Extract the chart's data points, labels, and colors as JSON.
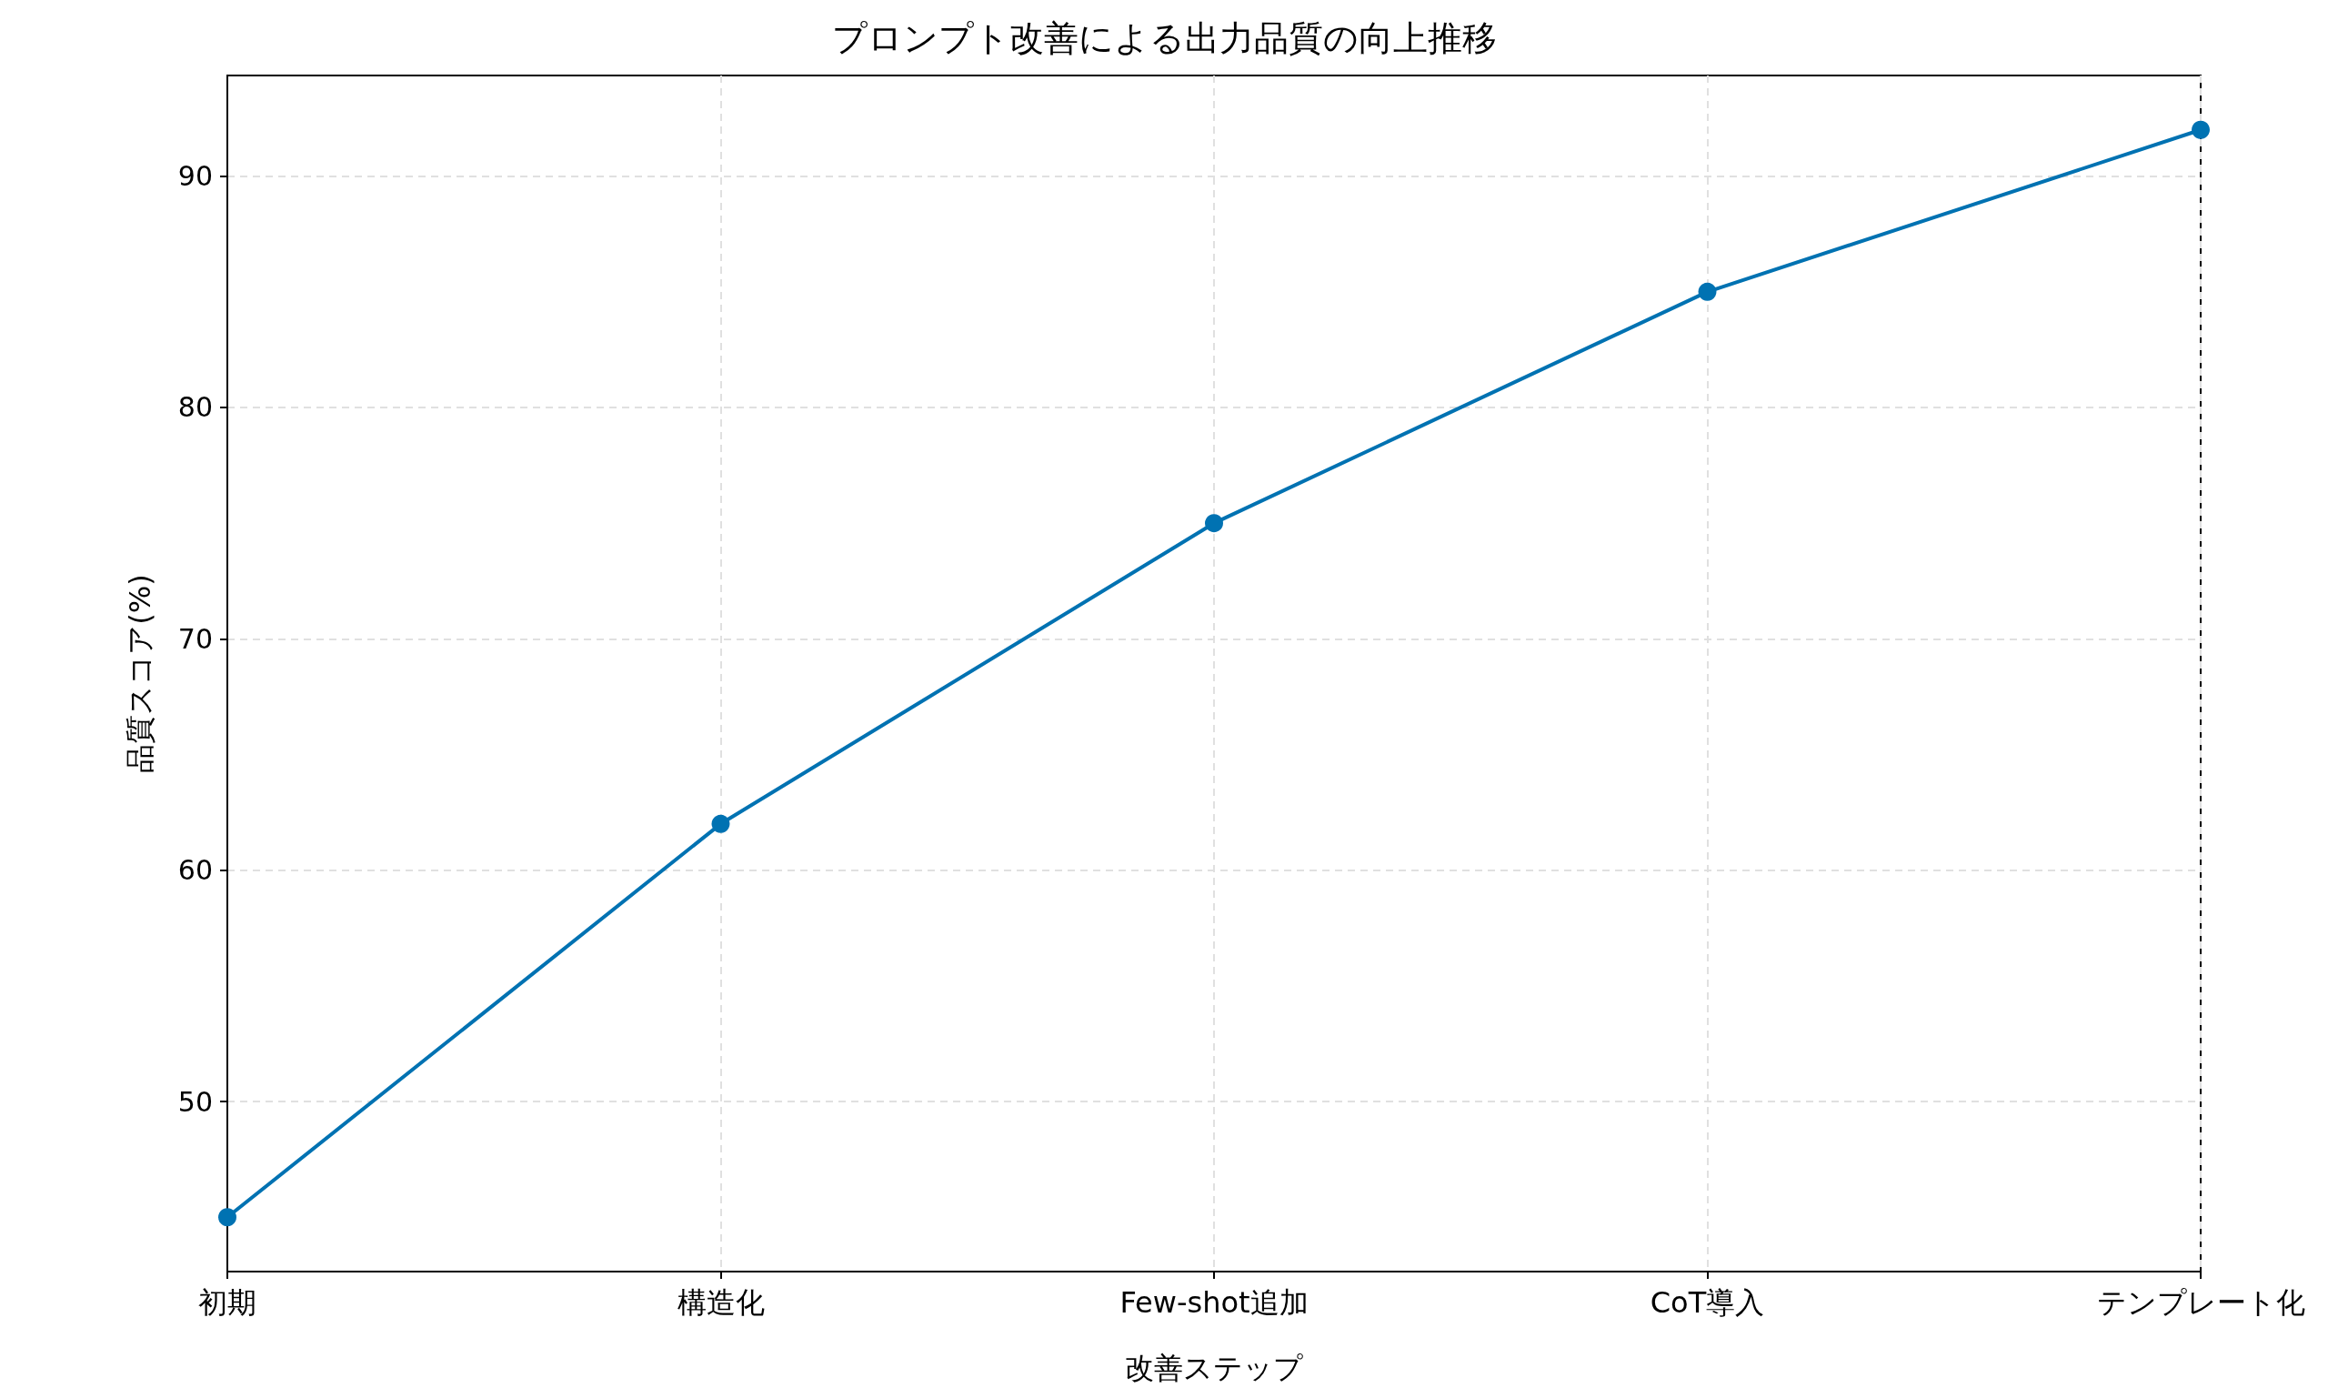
{
  "chart_data": {
    "type": "line",
    "title": "プロンプト改善による出力品質の向上推移",
    "xlabel": "改善ステップ",
    "ylabel": "品質スコア(%)",
    "categories": [
      "初期",
      "構造化",
      "Few-shot追加",
      "CoT導入",
      "テンプレート化"
    ],
    "series": [
      {
        "color": "#0072b2",
        "values": [
          45,
          62,
          75,
          85,
          92
        ]
      }
    ],
    "ylim": [
      42.65,
      94.35
    ],
    "yticks": [
      50,
      60,
      70,
      80,
      90
    ],
    "grid": true,
    "marker": "circle",
    "line_style": "solid"
  }
}
